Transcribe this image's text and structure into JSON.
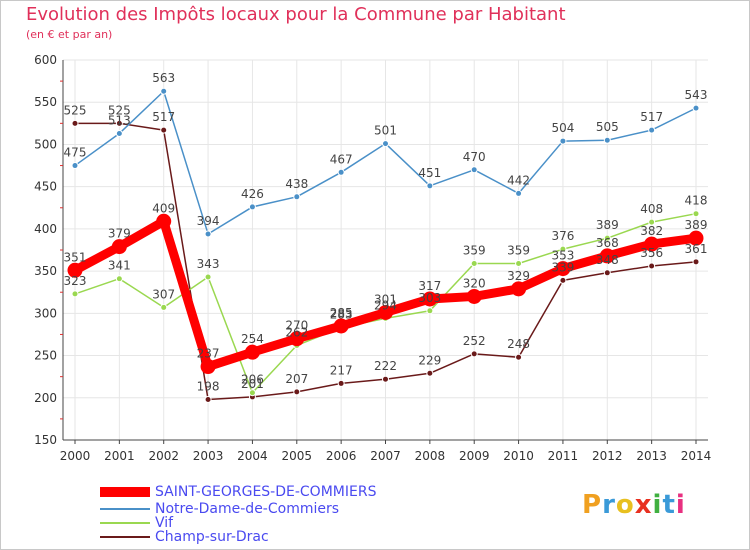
{
  "title": "Evolution des Impôts locaux pour la Commune par Habitant",
  "subtitle": "(en € et par an)",
  "logo": {
    "letters": [
      "P",
      "r",
      "o",
      "x",
      "i",
      "t",
      "i"
    ],
    "colors": [
      "#f0a020",
      "#3a9ad8",
      "#e8c020",
      "#e83020",
      "#40b040",
      "#3a9ad8",
      "#e83080"
    ]
  },
  "chart_data": {
    "type": "line",
    "x": [
      2000,
      2001,
      2002,
      2003,
      2004,
      2005,
      2006,
      2007,
      2008,
      2009,
      2010,
      2011,
      2012,
      2013,
      2014
    ],
    "ylim": [
      150,
      600
    ],
    "yticks": [
      150,
      200,
      250,
      300,
      350,
      400,
      450,
      500,
      550,
      600
    ],
    "grid": true,
    "legend_position": "bottom",
    "series": [
      {
        "name": "Champ-sur-Drac",
        "color": "#6a1a1a",
        "values": [
          525,
          525,
          517,
          198,
          201,
          207,
          217,
          222,
          229,
          252,
          248,
          339,
          348,
          356,
          361
        ]
      },
      {
        "name": "Vif",
        "color": "#9ad850",
        "values": [
          323,
          341,
          307,
          343,
          206,
          262,
          283,
          294,
          303,
          359,
          359,
          376,
          389,
          408,
          418
        ]
      },
      {
        "name": "Notre-Dame-de-Commiers",
        "color": "#4a90c8",
        "values": [
          475,
          513,
          563,
          394,
          426,
          438,
          467,
          501,
          451,
          470,
          442,
          504,
          505,
          517,
          543
        ]
      },
      {
        "name": "SAINT-GEORGES-DE-COMMIERS",
        "color": "#ff0000",
        "values": [
          351,
          379,
          409,
          237,
          254,
          270,
          285,
          301,
          317,
          320,
          329,
          353,
          368,
          382,
          389
        ]
      }
    ],
    "legend": [
      "SAINT-GEORGES-DE-COMMIERS",
      "Notre-Dame-de-Commiers",
      "Vif",
      "Champ-sur-Drac"
    ]
  }
}
